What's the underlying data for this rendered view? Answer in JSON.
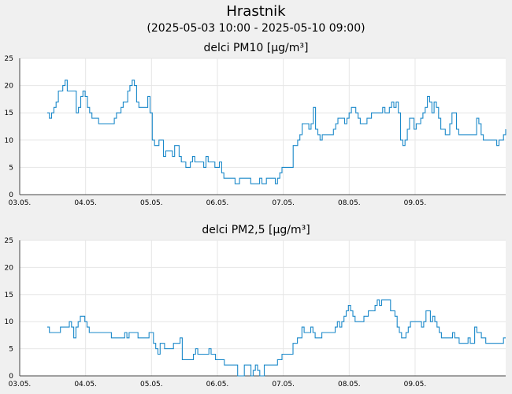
{
  "header": {
    "title": "Hrastnik",
    "subtitle": "(2025-05-03 10:00 - 2025-05-10 09:00)"
  },
  "colors": {
    "line": "#1a88c9",
    "plot_bg": "#ffffff",
    "page_bg": "#f0f0f0"
  },
  "chart_data": [
    {
      "type": "line",
      "title": "delci PM10 [µg/m³]",
      "xlabel": "",
      "ylabel": "",
      "ylim": [
        0,
        25
      ],
      "yticks": [
        0,
        5,
        10,
        15,
        20,
        25
      ],
      "xticks": [
        "03.05.",
        "04.05.",
        "05.05.",
        "06.05.",
        "07.05.",
        "08.05.",
        "09.05."
      ],
      "grid": true,
      "x_start": "2025-05-03 00:00",
      "x_end": "2025-05-10 09:00",
      "series": [
        {
          "values": [
            15,
            14,
            15,
            16,
            17,
            19,
            19,
            20,
            21,
            19,
            19,
            19,
            19,
            15,
            16,
            18,
            19,
            18,
            16,
            15,
            14,
            14,
            14,
            13,
            13,
            13,
            13,
            13,
            13,
            13,
            14,
            15,
            15,
            16,
            17,
            17,
            19,
            20,
            21,
            20,
            17,
            16,
            16,
            16,
            16,
            18,
            15,
            10,
            9,
            9,
            10,
            10,
            7,
            8,
            8,
            8,
            7,
            9,
            9,
            7,
            6,
            6,
            5,
            5,
            6,
            7,
            6,
            6,
            6,
            6,
            5,
            7,
            6,
            6,
            6,
            5,
            5,
            6,
            4,
            3,
            3,
            3,
            3,
            3,
            2,
            2,
            3,
            3,
            3,
            3,
            3,
            2,
            2,
            2,
            2,
            3,
            2,
            2,
            3,
            3,
            3,
            3,
            2,
            3,
            4,
            5,
            5,
            5,
            5,
            5,
            9,
            9,
            10,
            11,
            13,
            13,
            13,
            12,
            13,
            16,
            12,
            11,
            10,
            11,
            11,
            11,
            11,
            11,
            12,
            13,
            14,
            14,
            14,
            13,
            14,
            15,
            16,
            16,
            15,
            14,
            13,
            13,
            13,
            14,
            14,
            15,
            15,
            15,
            15,
            15,
            16,
            15,
            15,
            16,
            17,
            16,
            17,
            15,
            10,
            9,
            10,
            12,
            14,
            14,
            12,
            13,
            13,
            14,
            15,
            16,
            18,
            17,
            15,
            17,
            16,
            14,
            12,
            12,
            11,
            11,
            13,
            15,
            15,
            12,
            11,
            11,
            11,
            11,
            11,
            11,
            11,
            11,
            14,
            13,
            11,
            10,
            10,
            10,
            10,
            10,
            10,
            9,
            10,
            10,
            11,
            12
          ]
        }
      ]
    },
    {
      "type": "line",
      "title": "delci PM2,5 [µg/m³]",
      "xlabel": "",
      "ylabel": "",
      "ylim": [
        0,
        25
      ],
      "yticks": [
        0,
        5,
        10,
        15,
        20,
        25
      ],
      "xticks": [
        "03.05.",
        "04.05.",
        "05.05.",
        "06.05.",
        "07.05.",
        "08.05.",
        "09.05."
      ],
      "grid": true,
      "x_start": "2025-05-03 00:00",
      "x_end": "2025-05-10 09:00",
      "series": [
        {
          "values": [
            9,
            8,
            8,
            8,
            8,
            8,
            9,
            9,
            9,
            9,
            10,
            9,
            7,
            9,
            10,
            11,
            11,
            10,
            9,
            8,
            8,
            8,
            8,
            8,
            8,
            8,
            8,
            8,
            8,
            7,
            7,
            7,
            7,
            7,
            7,
            8,
            7,
            8,
            8,
            8,
            8,
            7,
            7,
            7,
            7,
            7,
            8,
            8,
            6,
            5,
            4,
            6,
            6,
            5,
            5,
            5,
            5,
            6,
            6,
            6,
            7,
            3,
            3,
            3,
            3,
            3,
            4,
            5,
            4,
            4,
            4,
            4,
            4,
            5,
            4,
            4,
            3,
            3,
            3,
            3,
            2,
            2,
            2,
            2,
            2,
            2,
            0,
            0,
            0,
            2,
            2,
            2,
            0,
            1,
            2,
            1,
            0,
            0,
            2,
            2,
            2,
            2,
            2,
            2,
            3,
            3,
            4,
            4,
            4,
            4,
            4,
            6,
            6,
            7,
            7,
            9,
            8,
            8,
            8,
            9,
            8,
            7,
            7,
            7,
            8,
            8,
            8,
            8,
            8,
            8,
            9,
            10,
            9,
            10,
            11,
            12,
            13,
            12,
            11,
            10,
            10,
            10,
            10,
            11,
            11,
            12,
            12,
            12,
            13,
            14,
            13,
            14,
            14,
            14,
            14,
            12,
            12,
            11,
            9,
            8,
            7,
            7,
            8,
            9,
            10,
            10,
            10,
            10,
            10,
            9,
            10,
            12,
            12,
            10,
            11,
            10,
            9,
            8,
            7,
            7,
            7,
            7,
            7,
            8,
            7,
            7,
            6,
            6,
            6,
            6,
            7,
            6,
            6,
            9,
            8,
            8,
            7,
            7,
            6,
            6,
            6,
            6,
            6,
            6,
            6,
            6,
            7,
            7
          ]
        }
      ]
    }
  ]
}
